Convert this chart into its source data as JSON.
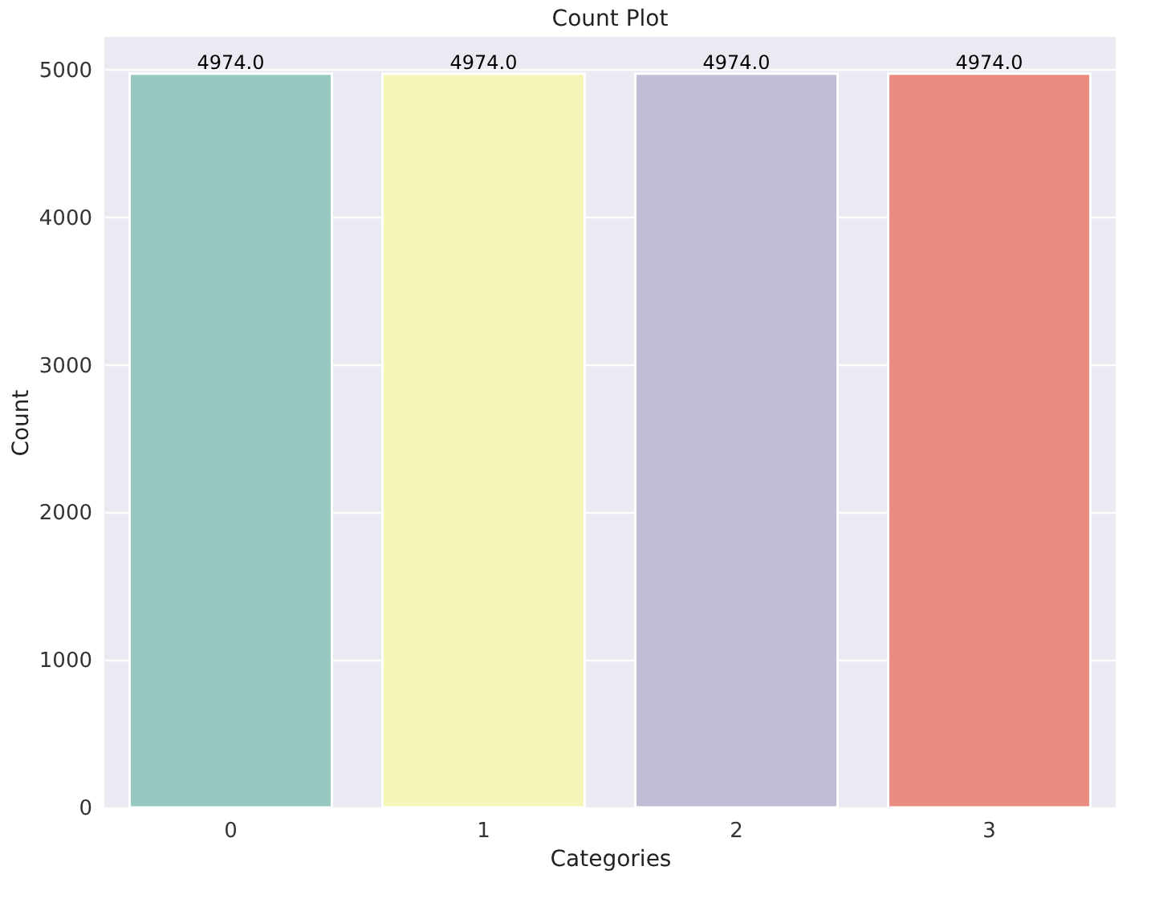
{
  "chart_data": {
    "type": "bar",
    "title": "Count Plot",
    "xlabel": "Categories",
    "ylabel": "Count",
    "categories": [
      "0",
      "1",
      "2",
      "3"
    ],
    "values": [
      4974,
      4974,
      4974,
      4974
    ],
    "colors": [
      "#97c9c0",
      "#f6f6b8",
      "#c1bdd7",
      "#ea8d80"
    ],
    "value_labels": [
      "4974.0",
      "4974.0",
      "4974.0",
      "4974.0"
    ],
    "ylim": [
      0,
      5223
    ],
    "yticks": [
      0,
      1000,
      2000,
      3000,
      4000,
      5000
    ],
    "grid": "y"
  }
}
